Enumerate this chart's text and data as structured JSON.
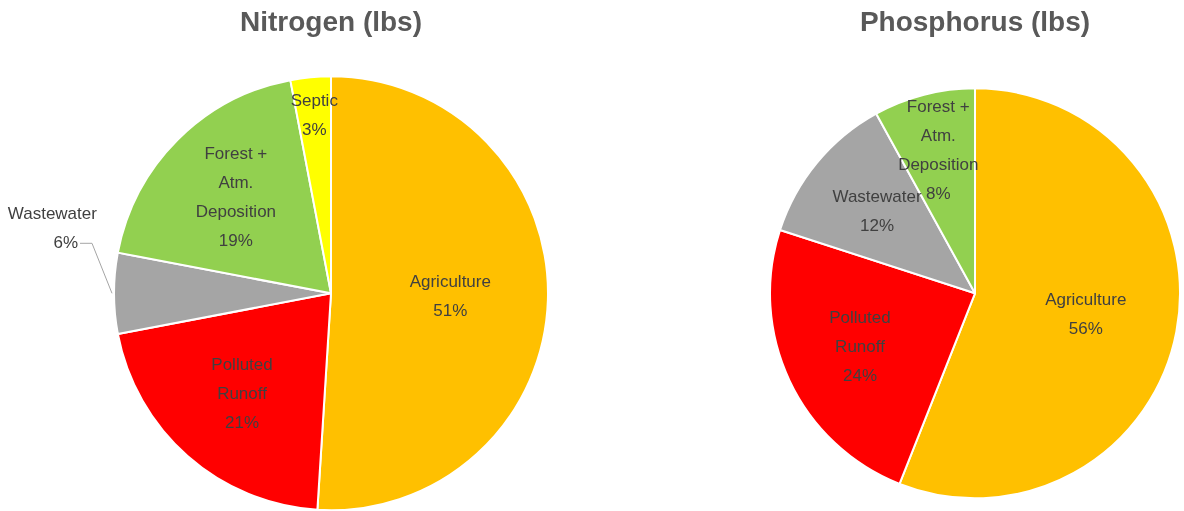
{
  "chart_data": [
    {
      "type": "pie",
      "title": "Nitrogen (lbs)",
      "categories": [
        "Agriculture",
        "Polluted Runoff",
        "Wastewater",
        "Forest + Atm. Deposition",
        "Septic"
      ],
      "values": [
        51,
        21,
        6,
        19,
        3
      ],
      "value_labels": [
        "51%",
        "21%",
        "6%",
        "19%",
        "3%"
      ],
      "colors": [
        "#ffc000",
        "#ff0000",
        "#a5a5a5",
        "#92d050",
        "#ffff00"
      ],
      "legend": false
    },
    {
      "type": "pie",
      "title": "Phosphorus (lbs)",
      "categories": [
        "Agriculture",
        "Polluted Runoff",
        "Wastewater",
        "Forest + Atm. Deposition"
      ],
      "values": [
        56,
        24,
        12,
        8
      ],
      "value_labels": [
        "56%",
        "24%",
        "12%",
        "8%"
      ],
      "colors": [
        "#ffc000",
        "#ff0000",
        "#a5a5a5",
        "#92d050"
      ],
      "legend": false
    }
  ]
}
